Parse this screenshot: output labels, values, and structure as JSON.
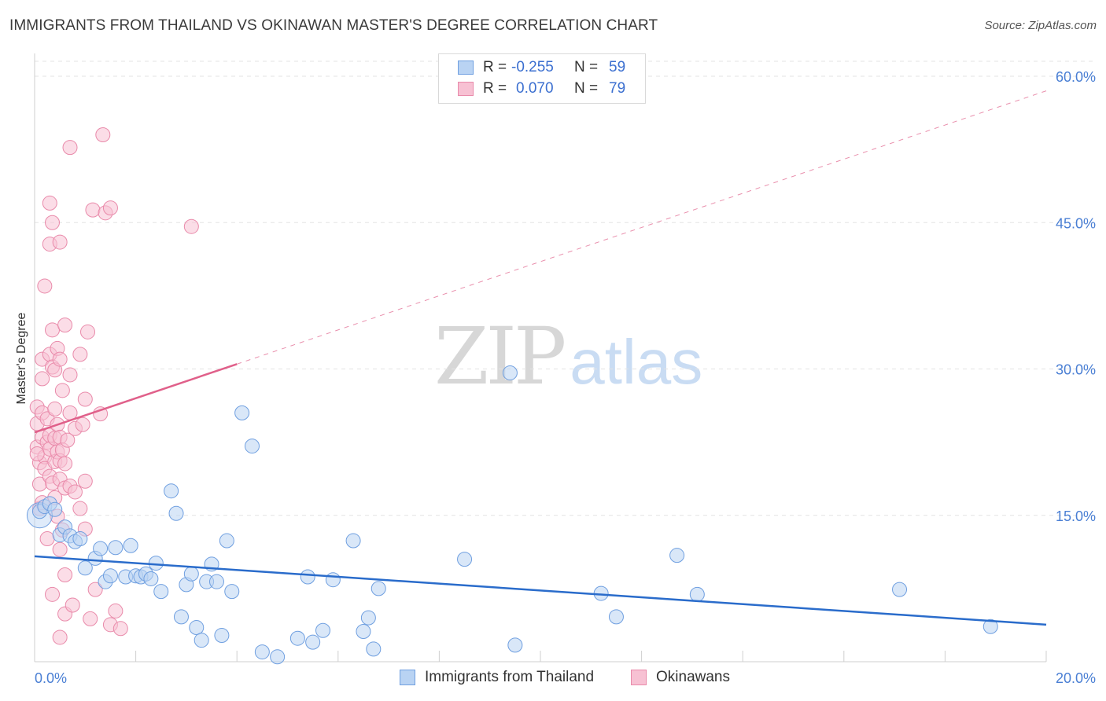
{
  "header": {
    "title": "IMMIGRANTS FROM THAILAND VS OKINAWAN MASTER'S DEGREE CORRELATION CHART",
    "source": "Source: ZipAtlas.com"
  },
  "watermark": {
    "zip": "ZIP",
    "atlas": "atlas"
  },
  "legend": {
    "rows": [
      {
        "r_label": "R =",
        "r_value": "-0.255",
        "n_label": "N =",
        "n_value": "59"
      },
      {
        "r_label": "R =",
        "r_value": "0.070",
        "n_label": "N =",
        "n_value": "79"
      }
    ]
  },
  "bottom_legend": {
    "series1": "Immigrants from Thailand",
    "series2": "Okinawans"
  },
  "colors": {
    "blue_fill": "#b9d3f3",
    "blue_stroke": "#6f9fe0",
    "blue_line": "#2a6ccb",
    "pink_fill": "#f7c1d3",
    "pink_stroke": "#e98aaa",
    "pink_line": "#e0608a",
    "tick_text": "#4a7fd4"
  },
  "chart_data": {
    "type": "scatter",
    "title": "IMMIGRANTS FROM THAILAND VS OKINAWAN MASTER'S DEGREE CORRELATION CHART",
    "xlabel": "",
    "ylabel": "Master's Degree",
    "xlim": [
      0,
      20
    ],
    "ylim": [
      0,
      62
    ],
    "x_tick_labels": [
      "0.0%",
      "20.0%"
    ],
    "y_ticks": [
      15,
      30,
      45,
      60
    ],
    "y_tick_labels": [
      "15.0%",
      "30.0%",
      "45.0%",
      "60.0%"
    ],
    "grid": true,
    "legend_position": "top-center",
    "series": [
      {
        "name": "Immigrants from Thailand",
        "r": -0.255,
        "n": 59,
        "trend": {
          "x": [
            0,
            20
          ],
          "y": [
            10.8,
            3.8
          ],
          "style": "solid"
        },
        "points": [
          [
            0.1,
            15.4
          ],
          [
            0.2,
            15.9
          ],
          [
            0.3,
            16.2
          ],
          [
            0.4,
            15.6
          ],
          [
            0.5,
            13.0
          ],
          [
            0.6,
            13.8
          ],
          [
            0.7,
            12.9
          ],
          [
            0.8,
            12.3
          ],
          [
            0.9,
            12.6
          ],
          [
            1.0,
            9.6
          ],
          [
            1.2,
            10.6
          ],
          [
            1.3,
            11.6
          ],
          [
            1.4,
            8.2
          ],
          [
            1.5,
            8.8
          ],
          [
            1.6,
            11.7
          ],
          [
            1.8,
            8.7
          ],
          [
            1.9,
            11.9
          ],
          [
            2.0,
            8.8
          ],
          [
            2.1,
            8.7
          ],
          [
            2.2,
            9.0
          ],
          [
            2.3,
            8.5
          ],
          [
            2.4,
            10.1
          ],
          [
            2.5,
            7.2
          ],
          [
            2.7,
            17.5
          ],
          [
            2.8,
            15.2
          ],
          [
            2.9,
            4.6
          ],
          [
            3.0,
            7.9
          ],
          [
            3.1,
            9.0
          ],
          [
            3.2,
            3.5
          ],
          [
            3.3,
            2.2
          ],
          [
            3.4,
            8.2
          ],
          [
            3.5,
            10.0
          ],
          [
            3.6,
            8.2
          ],
          [
            3.7,
            2.7
          ],
          [
            3.8,
            12.4
          ],
          [
            3.9,
            7.2
          ],
          [
            4.1,
            25.5
          ],
          [
            4.3,
            22.1
          ],
          [
            4.5,
            1.0
          ],
          [
            4.8,
            0.5
          ],
          [
            5.2,
            2.4
          ],
          [
            5.4,
            8.7
          ],
          [
            5.5,
            2.0
          ],
          [
            5.7,
            3.2
          ],
          [
            5.9,
            8.4
          ],
          [
            6.3,
            12.4
          ],
          [
            6.5,
            3.1
          ],
          [
            6.6,
            4.5
          ],
          [
            6.7,
            1.3
          ],
          [
            6.8,
            7.5
          ],
          [
            8.5,
            10.5
          ],
          [
            9.4,
            29.6
          ],
          [
            9.5,
            1.7
          ],
          [
            11.2,
            7.0
          ],
          [
            11.5,
            4.6
          ],
          [
            12.7,
            10.9
          ],
          [
            13.1,
            6.9
          ],
          [
            17.1,
            7.4
          ],
          [
            18.9,
            3.6
          ]
        ]
      },
      {
        "name": "Okinawans",
        "r": 0.07,
        "n": 79,
        "trend": {
          "x": [
            0,
            4.0
          ],
          "y": [
            23.5,
            30.5
          ],
          "dashed_to": [
            20,
            58.5
          ],
          "style": "solid-then-dashed"
        },
        "points": [
          [
            0.05,
            26.1
          ],
          [
            0.05,
            24.4
          ],
          [
            0.05,
            22.0
          ],
          [
            0.1,
            20.4
          ],
          [
            0.1,
            18.2
          ],
          [
            0.1,
            15.7
          ],
          [
            0.15,
            31.0
          ],
          [
            0.15,
            29.0
          ],
          [
            0.15,
            25.5
          ],
          [
            0.15,
            23.0
          ],
          [
            0.2,
            38.5
          ],
          [
            0.2,
            21.0
          ],
          [
            0.2,
            19.8
          ],
          [
            0.25,
            24.9
          ],
          [
            0.25,
            22.5
          ],
          [
            0.3,
            47.0
          ],
          [
            0.3,
            42.8
          ],
          [
            0.3,
            31.5
          ],
          [
            0.3,
            23.2
          ],
          [
            0.3,
            21.8
          ],
          [
            0.3,
            19.0
          ],
          [
            0.35,
            45.0
          ],
          [
            0.35,
            34.0
          ],
          [
            0.35,
            30.2
          ],
          [
            0.35,
            18.3
          ],
          [
            0.4,
            29.9
          ],
          [
            0.4,
            25.9
          ],
          [
            0.4,
            22.9
          ],
          [
            0.4,
            20.5
          ],
          [
            0.4,
            16.8
          ],
          [
            0.45,
            32.1
          ],
          [
            0.45,
            24.3
          ],
          [
            0.45,
            21.5
          ],
          [
            0.5,
            43.0
          ],
          [
            0.5,
            31.0
          ],
          [
            0.5,
            23.0
          ],
          [
            0.5,
            20.6
          ],
          [
            0.5,
            18.7
          ],
          [
            0.5,
            11.5
          ],
          [
            0.5,
            2.5
          ],
          [
            0.55,
            21.7
          ],
          [
            0.55,
            13.5
          ],
          [
            0.6,
            34.5
          ],
          [
            0.6,
            20.3
          ],
          [
            0.6,
            17.8
          ],
          [
            0.6,
            4.9
          ],
          [
            0.65,
            22.7
          ],
          [
            0.7,
            52.7
          ],
          [
            0.7,
            29.4
          ],
          [
            0.7,
            25.5
          ],
          [
            0.7,
            18.0
          ],
          [
            0.75,
            5.8
          ],
          [
            0.8,
            23.9
          ],
          [
            0.8,
            17.4
          ],
          [
            0.9,
            31.5
          ],
          [
            0.9,
            15.7
          ],
          [
            0.95,
            24.3
          ],
          [
            1.0,
            26.9
          ],
          [
            1.0,
            18.5
          ],
          [
            1.0,
            13.6
          ],
          [
            1.05,
            33.8
          ],
          [
            1.1,
            4.4
          ],
          [
            1.15,
            46.3
          ],
          [
            1.2,
            7.4
          ],
          [
            1.3,
            25.4
          ],
          [
            1.35,
            54.0
          ],
          [
            1.4,
            46.0
          ],
          [
            1.5,
            46.5
          ],
          [
            1.5,
            3.8
          ],
          [
            1.6,
            5.2
          ],
          [
            1.7,
            3.4
          ],
          [
            3.1,
            44.6
          ],
          [
            0.35,
            6.9
          ],
          [
            0.55,
            27.8
          ],
          [
            0.15,
            16.3
          ],
          [
            0.25,
            12.6
          ],
          [
            0.45,
            14.9
          ],
          [
            0.6,
            8.9
          ],
          [
            0.05,
            21.3
          ]
        ]
      }
    ]
  }
}
